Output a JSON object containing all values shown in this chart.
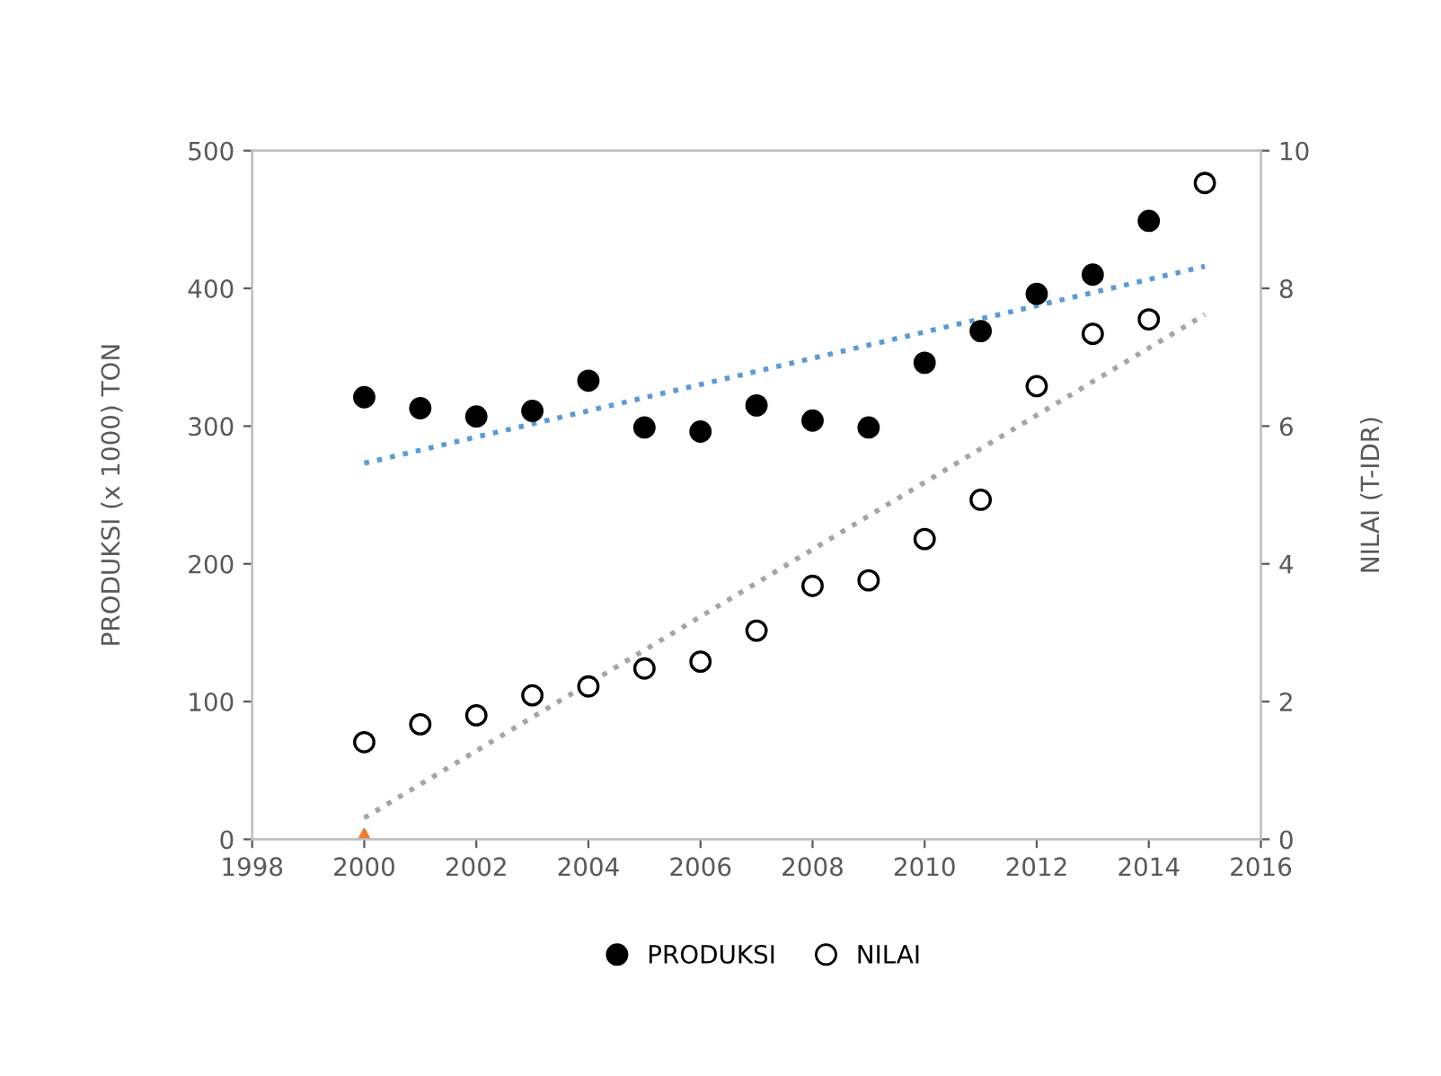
{
  "chart_data": {
    "type": "scatter",
    "ylabel": "PRODUKSI (x 1000) TON",
    "y2label": "NILAI (T-IDR)",
    "xlim": [
      1998,
      2016
    ],
    "xticks": [
      1998,
      2000,
      2002,
      2004,
      2006,
      2008,
      2010,
      2012,
      2014,
      2016
    ],
    "ylim": [
      0,
      500
    ],
    "yticks": [
      0,
      100,
      200,
      300,
      400,
      500
    ],
    "y2lim": [
      0,
      10
    ],
    "y2ticks": [
      0,
      2,
      4,
      6,
      8,
      10
    ],
    "grid": false,
    "legend": "bottom",
    "series": [
      {
        "name": "PRODUKSI",
        "color": "#000000",
        "marker": "circle",
        "x": [
          2000,
          2001,
          2002,
          2003,
          2004,
          2005,
          2006,
          2007,
          2008,
          2009,
          2010,
          2011,
          2012,
          2013,
          2014
        ],
        "values": [
          321,
          313,
          307,
          311,
          333,
          299,
          296,
          315,
          304,
          299,
          346,
          369,
          396,
          410,
          449
        ]
      },
      {
        "name": "NILAI",
        "color": "#ffffff",
        "marker": "circle",
        "axis": "y2",
        "x": [
          2000,
          2001,
          2002,
          2003,
          2004,
          2005,
          2006,
          2007,
          2008,
          2009,
          2010,
          2011,
          2012,
          2013,
          2014,
          2015
        ],
        "values": [
          1.41,
          1.67,
          1.8,
          2.09,
          2.22,
          2.48,
          2.58,
          3.03,
          3.68,
          3.76,
          4.36,
          4.93,
          6.58,
          7.34,
          7.55,
          9.53
        ]
      },
      {
        "type": "line",
        "color": "#5b9bd5",
        "line_style": "dotted",
        "x": [
          2000,
          2015
        ],
        "values": [
          273,
          416
        ]
      },
      {
        "type": "line",
        "color": "#a5a5a5",
        "line_style": "dotted",
        "axis": "y2",
        "x": [
          2000,
          2015
        ],
        "values": [
          0.31,
          7.62
        ]
      },
      {
        "color": "#ed7d31",
        "marker": "triangle",
        "x": [
          2000
        ],
        "values": [
          0
        ]
      }
    ]
  }
}
